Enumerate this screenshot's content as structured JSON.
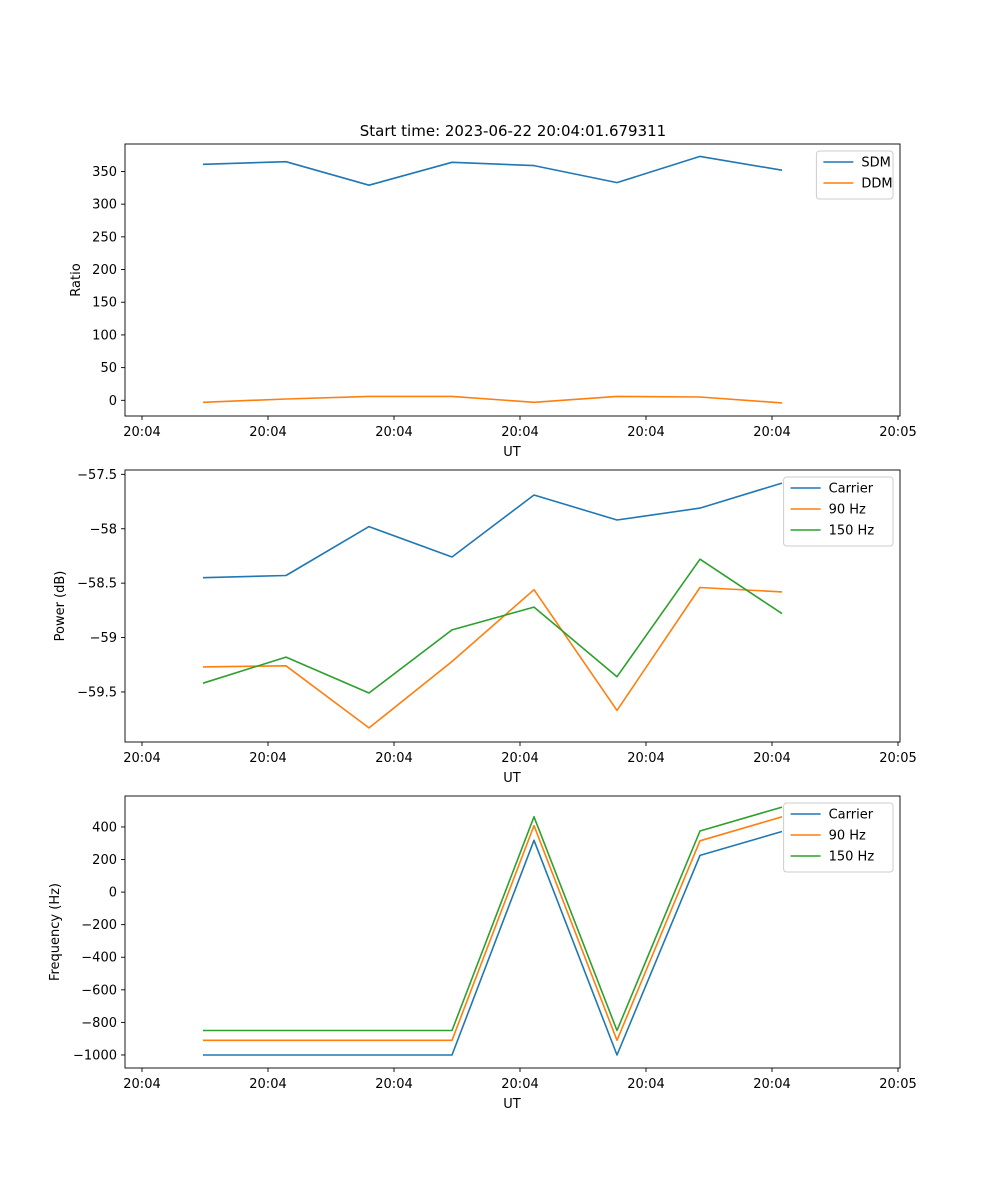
{
  "title": "Start time: 2023-06-22 20:04:01.679311",
  "colors": {
    "series_1": "#1f77b4",
    "series_2": "#ff7f0e",
    "series_3": "#2ca02c"
  },
  "x_axis": {
    "label": "UT",
    "tick_labels": [
      "20:04",
      "20:04",
      "20:04",
      "20:04",
      "20:04",
      "20:04",
      "20:05"
    ]
  },
  "chart_data": [
    {
      "type": "line",
      "ylabel": "Ratio",
      "xlabel": "UT",
      "x_ticks": [
        "20:04",
        "20:04",
        "20:04",
        "20:04",
        "20:04",
        "20:04",
        "20:05"
      ],
      "y_ticks": [
        0,
        50,
        100,
        150,
        200,
        250,
        300,
        350
      ],
      "ylim": [
        -24,
        392
      ],
      "legend": "top-right",
      "grid": false,
      "series": [
        {
          "name": "SDM",
          "color": "#1f77b4",
          "values": [
            361,
            365,
            329,
            364,
            359,
            333,
            373,
            352
          ]
        },
        {
          "name": "DDM",
          "color": "#ff7f0e",
          "values": [
            -3,
            2,
            6,
            6,
            -3,
            6,
            5,
            -4
          ]
        }
      ]
    },
    {
      "type": "line",
      "ylabel": "Power (dB)",
      "xlabel": "UT",
      "x_ticks": [
        "20:04",
        "20:04",
        "20:04",
        "20:04",
        "20:04",
        "20:04",
        "20:05"
      ],
      "y_ticks": [
        -59.5,
        -59.0,
        -58.5,
        -58.0,
        -57.5
      ],
      "ylim": [
        -59.96,
        -57.46
      ],
      "legend": "top-right",
      "grid": false,
      "series": [
        {
          "name": "Carrier",
          "color": "#1f77b4",
          "values": [
            -58.45,
            -58.43,
            -57.98,
            -58.26,
            -57.69,
            -57.92,
            -57.81,
            -57.58
          ]
        },
        {
          "name": "90 Hz",
          "color": "#ff7f0e",
          "values": [
            -59.27,
            -59.26,
            -59.83,
            -59.22,
            -58.56,
            -59.67,
            -58.54,
            -58.58
          ]
        },
        {
          "name": "150 Hz",
          "color": "#2ca02c",
          "values": [
            -59.42,
            -59.18,
            -59.51,
            -58.93,
            -58.72,
            -59.36,
            -58.28,
            -58.78
          ]
        }
      ]
    },
    {
      "type": "line",
      "ylabel": "Frequency (Hz)",
      "xlabel": "UT",
      "x_ticks": [
        "20:04",
        "20:04",
        "20:04",
        "20:04",
        "20:04",
        "20:04",
        "20:05"
      ],
      "y_ticks": [
        -1000,
        -800,
        -600,
        -400,
        -200,
        0,
        200,
        400
      ],
      "ylim": [
        -1080,
        590
      ],
      "legend": "top-right",
      "grid": false,
      "series": [
        {
          "name": "Carrier",
          "color": "#1f77b4",
          "values": [
            -1000,
            -1000,
            -1000,
            -1000,
            318,
            -1000,
            225,
            372
          ]
        },
        {
          "name": "90 Hz",
          "color": "#ff7f0e",
          "values": [
            -910,
            -910,
            -910,
            -910,
            408,
            -910,
            315,
            462
          ]
        },
        {
          "name": "150 Hz",
          "color": "#2ca02c",
          "values": [
            -850,
            -850,
            -850,
            -850,
            462,
            -850,
            375,
            522
          ]
        }
      ]
    }
  ]
}
